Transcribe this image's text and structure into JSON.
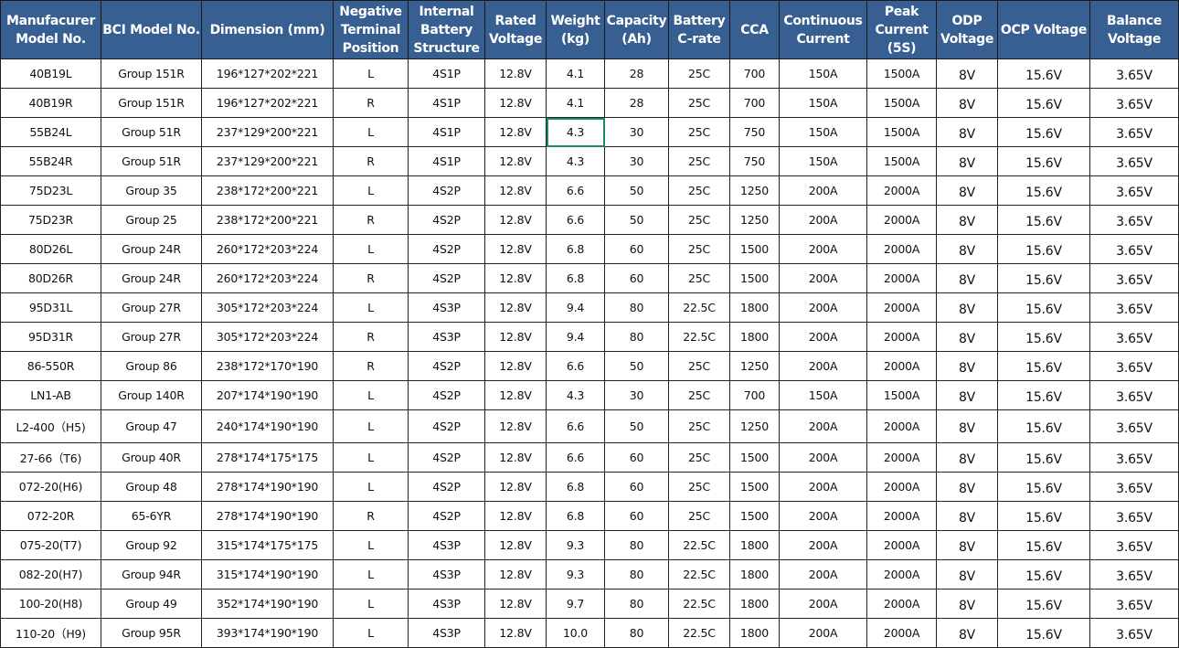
{
  "headers": [
    "Manufacurer Model No.",
    "BCI Model No.",
    "Dimension (mm)",
    "Negative Terminal Position",
    "Internal Battery Structure",
    "Rated Voltage",
    "Weight (kg)",
    "Capacity (Ah)",
    "Battery C-rate",
    "CCA",
    "Continuous Current",
    "Peak Current (5S)",
    "ODP Voltage",
    "OCP Voltage",
    "Balance Voltage"
  ],
  "rows": [
    [
      "40B19L",
      "Group 151R",
      "196*127*202*221",
      "L",
      "4S1P",
      "12.8V",
      "4.1",
      "28",
      "25C",
      "700",
      "150A",
      "1500A",
      "8V",
      "15.6V",
      "3.65V"
    ],
    [
      "40B19R",
      "Group 151R",
      "196*127*202*221",
      "R",
      "4S1P",
      "12.8V",
      "4.1",
      "28",
      "25C",
      "700",
      "150A",
      "1500A",
      "8V",
      "15.6V",
      "3.65V"
    ],
    [
      "55B24L",
      "Group 51R",
      "237*129*200*221",
      "L",
      "4S1P",
      "12.8V",
      "4.3",
      "30",
      "25C",
      "750",
      "150A",
      "1500A",
      "8V",
      "15.6V",
      "3.65V"
    ],
    [
      "55B24R",
      "Group 51R",
      "237*129*200*221",
      "R",
      "4S1P",
      "12.8V",
      "4.3",
      "30",
      "25C",
      "750",
      "150A",
      "1500A",
      "8V",
      "15.6V",
      "3.65V"
    ],
    [
      "75D23L",
      "Group 35",
      "238*172*200*221",
      "L",
      "4S2P",
      "12.8V",
      "6.6",
      "50",
      "25C",
      "1250",
      "200A",
      "2000A",
      "8V",
      "15.6V",
      "3.65V"
    ],
    [
      "75D23R",
      "Group 25",
      "238*172*200*221",
      "R",
      "4S2P",
      "12.8V",
      "6.6",
      "50",
      "25C",
      "1250",
      "200A",
      "2000A",
      "8V",
      "15.6V",
      "3.65V"
    ],
    [
      "80D26L",
      "Group 24R",
      "260*172*203*224",
      "L",
      "4S2P",
      "12.8V",
      "6.8",
      "60",
      "25C",
      "1500",
      "200A",
      "2000A",
      "8V",
      "15.6V",
      "3.65V"
    ],
    [
      "80D26R",
      "Group 24R",
      "260*172*203*224",
      "R",
      "4S2P",
      "12.8V",
      "6.8",
      "60",
      "25C",
      "1500",
      "200A",
      "2000A",
      "8V",
      "15.6V",
      "3.65V"
    ],
    [
      "95D31L",
      "Group 27R",
      "305*172*203*224",
      "L",
      "4S3P",
      "12.8V",
      "9.4",
      "80",
      "22.5C",
      "1800",
      "200A",
      "2000A",
      "8V",
      "15.6V",
      "3.65V"
    ],
    [
      "95D31R",
      "Group 27R",
      "305*172*203*224",
      "R",
      "4S3P",
      "12.8V",
      "9.4",
      "80",
      "22.5C",
      "1800",
      "200A",
      "2000A",
      "8V",
      "15.6V",
      "3.65V"
    ],
    [
      "86-550R",
      "Group 86",
      "238*172*170*190",
      "R",
      "4S2P",
      "12.8V",
      "6.6",
      "50",
      "25C",
      "1250",
      "200A",
      "2000A",
      "8V",
      "15.6V",
      "3.65V"
    ],
    [
      "LN1-AB",
      "Group 140R",
      "207*174*190*190",
      "L",
      "4S2P",
      "12.8V",
      "4.3",
      "30",
      "25C",
      "700",
      "150A",
      "1500A",
      "8V",
      "15.6V",
      "3.65V"
    ],
    [
      "L2-400（H5)",
      "Group 47",
      "240*174*190*190",
      "L",
      "4S2P",
      "12.8V",
      "6.6",
      "50",
      "25C",
      "1250",
      "200A",
      "2000A",
      "8V",
      "15.6V",
      "3.65V"
    ],
    [
      "27-66（T6)",
      "Group 40R",
      "278*174*175*175",
      "L",
      "4S2P",
      "12.8V",
      "6.6",
      "60",
      "25C",
      "1500",
      "200A",
      "2000A",
      "8V",
      "15.6V",
      "3.65V"
    ],
    [
      "072-20(H6)",
      "Group 48",
      "278*174*190*190",
      "L",
      "4S2P",
      "12.8V",
      "6.8",
      "60",
      "25C",
      "1500",
      "200A",
      "2000A",
      "8V",
      "15.6V",
      "3.65V"
    ],
    [
      "072-20R",
      "65-6YR",
      "278*174*190*190",
      "R",
      "4S2P",
      "12.8V",
      "6.8",
      "60",
      "25C",
      "1500",
      "200A",
      "2000A",
      "8V",
      "15.6V",
      "3.65V"
    ],
    [
      "075-20(T7)",
      "Group 92",
      "315*174*175*175",
      "L",
      "4S3P",
      "12.8V",
      "9.3",
      "80",
      "22.5C",
      "1800",
      "200A",
      "2000A",
      "8V",
      "15.6V",
      "3.65V"
    ],
    [
      "082-20(H7)",
      "Group 94R",
      "315*174*190*190",
      "L",
      "4S3P",
      "12.8V",
      "9.3",
      "80",
      "22.5C",
      "1800",
      "200A",
      "2000A",
      "8V",
      "15.6V",
      "3.65V"
    ],
    [
      "100-20(H8)",
      "Group 49",
      "352*174*190*190",
      "L",
      "4S3P",
      "12.8V",
      "9.7",
      "80",
      "22.5C",
      "1800",
      "200A",
      "2000A",
      "8V",
      "15.6V",
      "3.65V"
    ],
    [
      "110-20（H9)",
      "Group 95R",
      "393*174*190*190",
      "L",
      "4S3P",
      "12.8V",
      "10.0",
      "80",
      "22.5C",
      "1800",
      "200A",
      "2000A",
      "8V",
      "15.6V",
      "3.65V"
    ]
  ],
  "selected_cell": {
    "row": 2,
    "col": 6
  },
  "colors": {
    "header_bg": "#375f92",
    "header_text": "#ffffff",
    "selection": "#1f8a5c"
  }
}
